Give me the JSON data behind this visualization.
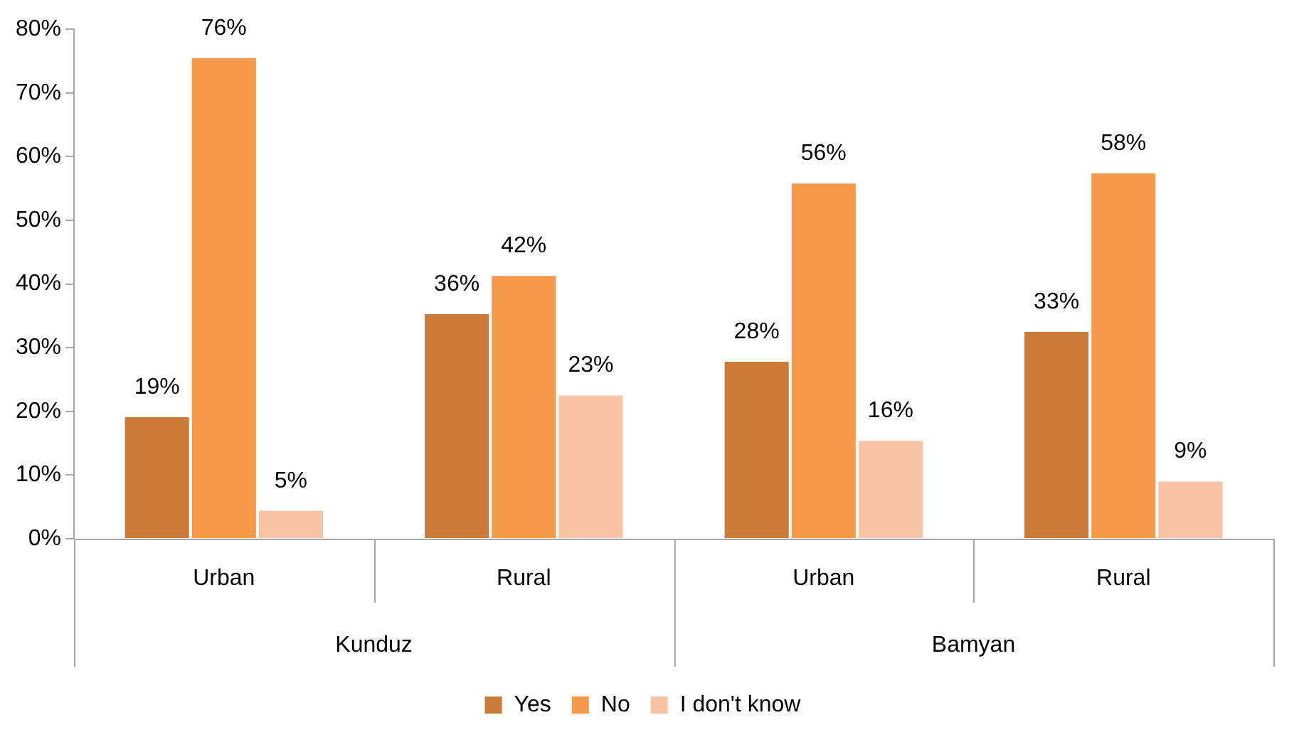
{
  "chart_data": {
    "type": "bar",
    "categories": [
      "Urban",
      "Rural",
      "Urban",
      "Rural"
    ],
    "series": [
      {
        "name": "Yes",
        "color": "#cc7a3a",
        "values": [
          19.3,
          35.5,
          28,
          32.7
        ],
        "value_labels": [
          "19%",
          "36%",
          "28%",
          "33%"
        ]
      },
      {
        "name": "No",
        "color": "#f59a4a",
        "values": [
          75.7,
          41.5,
          56,
          57.6
        ],
        "value_labels": [
          "76%",
          "42%",
          "56%",
          "58%"
        ]
      },
      {
        "name": "I don't know",
        "color": "#f8c2a4",
        "values": [
          4.6,
          22.7,
          15.6,
          9.2
        ],
        "value_labels": [
          "5%",
          "23%",
          "16%",
          "9%"
        ]
      }
    ],
    "ylim": [
      0,
      80
    ],
    "yticks": [
      {
        "value": 0,
        "label": "0%"
      },
      {
        "value": 10,
        "label": "10%"
      },
      {
        "value": 20,
        "label": "20%"
      },
      {
        "value": 30,
        "label": "30%"
      },
      {
        "value": 40,
        "label": "40%"
      },
      {
        "value": 50,
        "label": "50%"
      },
      {
        "value": 60,
        "label": "60%"
      },
      {
        "value": 70,
        "label": "70%"
      },
      {
        "value": 80,
        "label": "80%"
      }
    ],
    "annotations": [
      "Kunduz",
      "Bamyan"
    ],
    "grid": false,
    "legend": "bottom"
  }
}
